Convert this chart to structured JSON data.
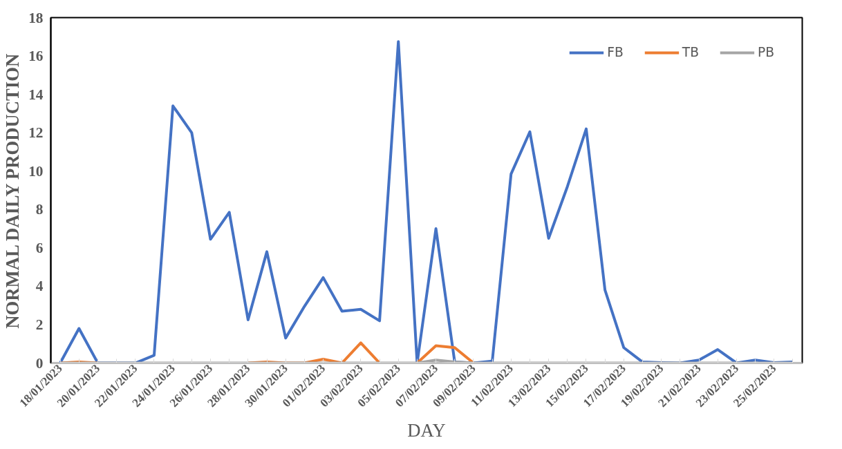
{
  "chart_data": {
    "type": "line",
    "xlabel": "DAY",
    "ylabel": "NORMAL DAILY PRODUCTION",
    "categories": [
      "18/01/2023",
      null,
      "20/01/2023",
      null,
      "22/01/2023",
      null,
      "24/01/2023",
      null,
      "26/01/2023",
      null,
      "28/01/2023",
      null,
      "30/01/2023",
      null,
      "01/02/2023",
      null,
      "03/02/2023",
      null,
      "05/02/2023",
      null,
      "07/02/2023",
      null,
      "09/02/2023",
      null,
      "11/02/2023",
      null,
      "13/02/2023",
      null,
      "15/02/2023",
      null,
      "17/02/2023",
      null,
      "19/02/2023",
      null,
      "21/02/2023",
      null,
      "23/02/2023",
      null,
      "25/02/2023",
      null
    ],
    "series": [
      {
        "name": "FB",
        "color": "#4472c4",
        "values": [
          0,
          1.8,
          0,
          0,
          0,
          0.4,
          13.4,
          12.0,
          6.45,
          7.85,
          2.25,
          5.8,
          1.3,
          2.95,
          4.45,
          2.7,
          2.8,
          2.2,
          16.75,
          0,
          7.0,
          0.05,
          0,
          0.1,
          9.85,
          12.05,
          6.5,
          9.2,
          12.2,
          3.8,
          0.8,
          0.05,
          0.02,
          0,
          0.15,
          0.7,
          0,
          0.15,
          0.02,
          0.05
        ]
      },
      {
        "name": "TB",
        "color": "#ed7d31",
        "values": [
          0,
          0.05,
          0,
          null,
          null,
          null,
          null,
          null,
          null,
          null,
          0,
          0.05,
          0,
          0,
          0.2,
          0,
          1.05,
          0,
          null,
          0,
          0.9,
          0.8,
          0,
          null,
          null,
          null,
          null,
          null,
          null,
          null,
          null,
          null,
          null,
          null,
          null,
          null,
          null,
          null,
          null,
          null
        ]
      },
      {
        "name": "PB",
        "color": "#a5a5a5",
        "values": [
          0,
          0,
          0,
          0,
          0,
          0,
          0,
          0,
          0,
          0,
          0,
          0,
          0,
          0,
          0,
          0,
          0,
          0,
          0,
          0,
          0.15,
          0.05,
          0,
          0,
          0,
          0,
          0,
          0,
          0,
          0,
          0,
          0,
          0,
          0,
          0,
          0,
          0,
          0,
          0,
          0
        ]
      }
    ],
    "ylim": [
      0,
      18
    ],
    "yticks": [
      0,
      2,
      4,
      6,
      8,
      10,
      12,
      14,
      16,
      18
    ],
    "grid": false,
    "legend": "top right",
    "marker": "none",
    "line_style": "solid"
  }
}
